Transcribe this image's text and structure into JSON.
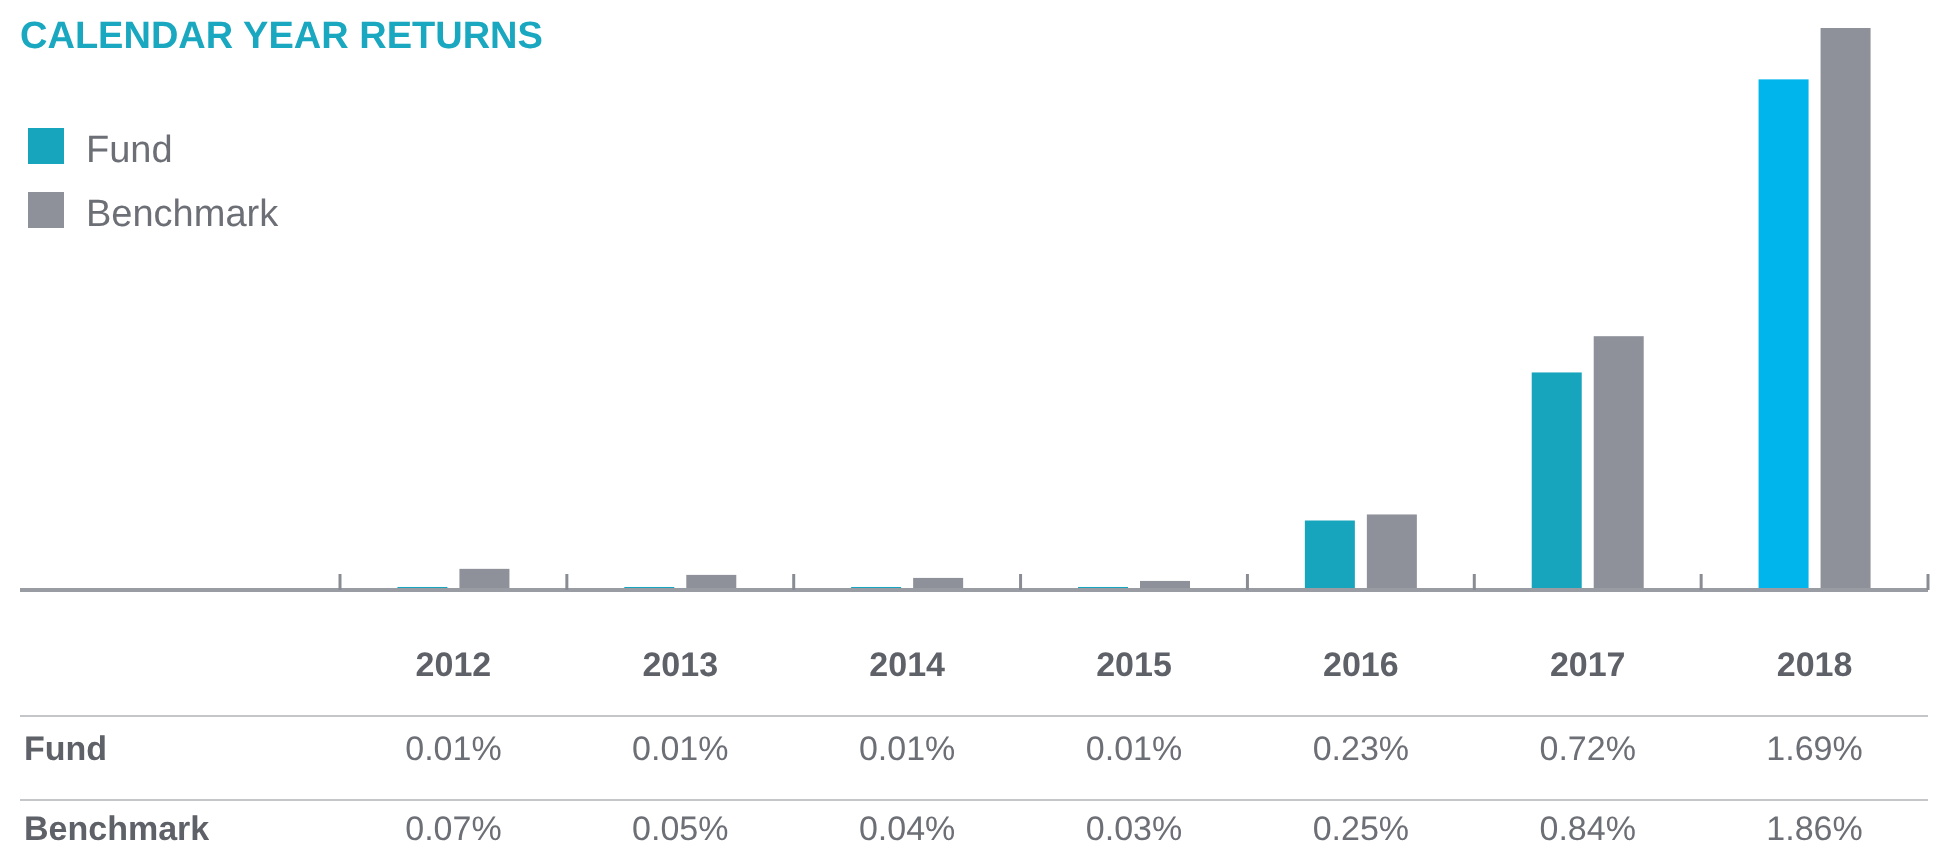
{
  "chart_data": {
    "type": "bar",
    "title": "CALENDAR YEAR RETURNS",
    "categories": [
      "2012",
      "2013",
      "2014",
      "2015",
      "2016",
      "2017",
      "2018"
    ],
    "series": [
      {
        "name": "Fund",
        "color": "#17a5bd",
        "colors": [
          "#17a5bd",
          "#17a5bd",
          "#17a5bd",
          "#17a5bd",
          "#17a5bd",
          "#17a5bd",
          "#00b5ec"
        ],
        "values": [
          0.01,
          0.01,
          0.01,
          0.01,
          0.23,
          0.72,
          1.69
        ],
        "value_labels": [
          "0.01%",
          "0.01%",
          "0.01%",
          "0.01%",
          "0.23%",
          "0.72%",
          "1.69%"
        ]
      },
      {
        "name": "Benchmark",
        "color": "#8e9199",
        "values": [
          0.07,
          0.05,
          0.04,
          0.03,
          0.25,
          0.84,
          1.86
        ],
        "value_labels": [
          "0.07%",
          "0.05%",
          "0.04%",
          "0.03%",
          "0.25%",
          "0.84%",
          "1.86%"
        ]
      }
    ],
    "legend": "top left"
  }
}
